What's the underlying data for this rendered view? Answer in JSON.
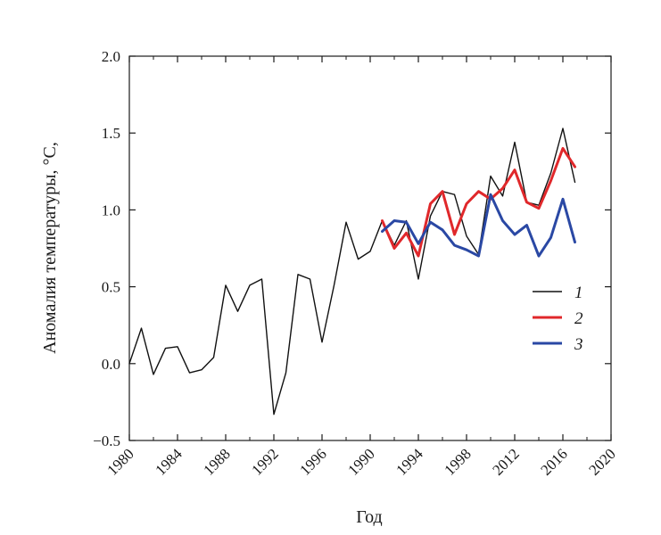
{
  "chart_data": {
    "type": "line",
    "title": "",
    "xlabel": "Год",
    "ylabel": "Аномалия температуры, °С,",
    "ylim": [
      -0.5,
      2.0
    ],
    "y_ticks": [
      "2.0",
      "1.5",
      "1.0",
      "0.5",
      "0.0",
      "−0.5"
    ],
    "x_tick_labels": [
      "1980",
      "1984",
      "1988",
      "1992",
      "1996",
      "1990",
      "1994",
      "1998",
      "2012",
      "2016",
      "2020"
    ],
    "grid": false,
    "legend_position": "right",
    "series": [
      {
        "name": "1",
        "color": "#111111",
        "years": [
          1980,
          1981,
          1982,
          1983,
          1984,
          1985,
          1986,
          1987,
          1988,
          1989,
          1990,
          1991,
          1992,
          1993,
          1994,
          1995,
          1996,
          1997,
          1998,
          1999,
          2000,
          2001,
          2002,
          2003,
          2004,
          2005,
          2006,
          2007,
          2008,
          2009,
          2010,
          2011,
          2012,
          2013,
          2014,
          2015,
          2016,
          2017
        ],
        "values": [
          0.0,
          0.23,
          -0.07,
          0.1,
          0.11,
          -0.06,
          -0.04,
          0.04,
          0.51,
          0.34,
          0.51,
          0.55,
          -0.33,
          -0.06,
          0.58,
          0.55,
          0.14,
          0.51,
          0.92,
          0.68,
          0.73,
          0.93,
          0.77,
          0.93,
          0.55,
          0.96,
          1.12,
          1.1,
          0.83,
          0.71,
          1.22,
          1.09,
          1.44,
          1.05,
          1.03,
          1.24,
          1.53,
          1.18
        ]
      },
      {
        "name": "2",
        "color": "#e0282b",
        "years": [
          2001,
          2002,
          2003,
          2004,
          2005,
          2006,
          2007,
          2008,
          2009,
          2010,
          2011,
          2012,
          2013,
          2014,
          2015,
          2016,
          2017
        ],
        "values": [
          0.93,
          0.75,
          0.85,
          0.7,
          1.04,
          1.12,
          0.84,
          1.04,
          1.12,
          1.07,
          1.14,
          1.26,
          1.05,
          1.01,
          1.19,
          1.4,
          1.28
        ]
      },
      {
        "name": "3",
        "color": "#2a48a4",
        "years": [
          2001,
          2002,
          2003,
          2004,
          2005,
          2006,
          2007,
          2008,
          2009,
          2010,
          2011,
          2012,
          2013,
          2014,
          2015,
          2016,
          2017
        ],
        "values": [
          0.86,
          0.93,
          0.92,
          0.78,
          0.92,
          0.87,
          0.77,
          0.74,
          0.7,
          1.1,
          0.93,
          0.84,
          0.9,
          0.7,
          0.82,
          1.07,
          0.79
        ]
      }
    ]
  }
}
